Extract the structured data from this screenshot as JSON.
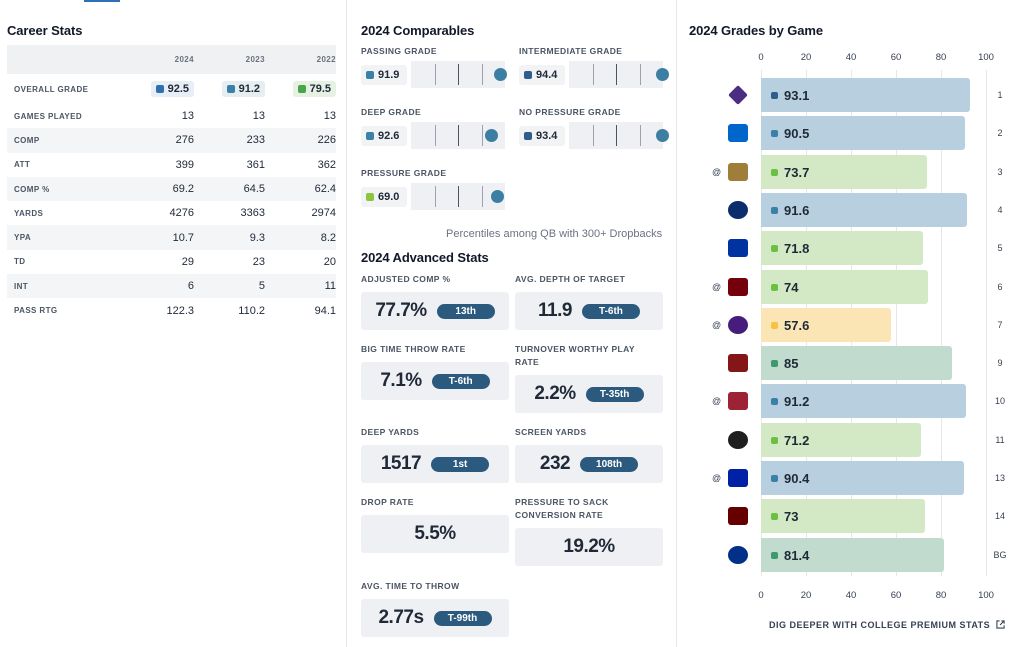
{
  "career": {
    "title": "Career Stats",
    "years": [
      "2024",
      "2023",
      "2022"
    ],
    "grade_row": {
      "label": "OVERALL GRADE",
      "values": [
        {
          "v": "92.5",
          "color": "#2f6fb0",
          "bg": "#e8eef6"
        },
        {
          "v": "91.2",
          "color": "#3b80a7",
          "bg": "#e6eef2"
        },
        {
          "v": "79.5",
          "color": "#4aa54a",
          "bg": "#e6f1e3"
        }
      ]
    },
    "rows": [
      {
        "label": "GAMES PLAYED",
        "values": [
          "13",
          "13",
          "13"
        ]
      },
      {
        "label": "COMP",
        "values": [
          "276",
          "233",
          "226"
        ]
      },
      {
        "label": "ATT",
        "values": [
          "399",
          "361",
          "362"
        ]
      },
      {
        "label": "COMP %",
        "values": [
          "69.2",
          "64.5",
          "62.4"
        ]
      },
      {
        "label": "YARDS",
        "values": [
          "4276",
          "3363",
          "2974"
        ]
      },
      {
        "label": "YPA",
        "values": [
          "10.7",
          "9.3",
          "8.2"
        ]
      },
      {
        "label": "TD",
        "values": [
          "29",
          "23",
          "20"
        ]
      },
      {
        "label": "INT",
        "values": [
          "6",
          "5",
          "11"
        ]
      },
      {
        "label": "PASS RTG",
        "values": [
          "122.3",
          "110.2",
          "94.1"
        ]
      }
    ]
  },
  "comparables": {
    "title": "2024 Comparables",
    "items": [
      {
        "label": "PASSING GRADE",
        "value": "91.9",
        "color": "#3b80a7",
        "percentile": 0.95
      },
      {
        "label": "INTERMEDIATE GRADE",
        "value": "94.4",
        "color": "#2f5d8c",
        "percentile": 0.99
      },
      {
        "label": "DEEP GRADE",
        "value": "92.6",
        "color": "#3b80a7",
        "percentile": 0.85
      },
      {
        "label": "NO PRESSURE GRADE",
        "value": "93.4",
        "color": "#2f5d8c",
        "percentile": 0.99
      },
      {
        "label": "PRESSURE GRADE",
        "value": "69.0",
        "color": "#8cc63f",
        "percentile": 0.92
      }
    ],
    "footnote": "Percentiles among QB with 300+ Dropbacks"
  },
  "advanced": {
    "title": "2024 Advanced Stats",
    "items": [
      {
        "label": "ADJUSTED COMP %",
        "value": "77.7%",
        "rank": "13th"
      },
      {
        "label": "AVG. DEPTH OF TARGET",
        "value": "11.9",
        "rank": "T-6th"
      },
      {
        "label": "BIG TIME THROW RATE",
        "value": "7.1%",
        "rank": "T-6th"
      },
      {
        "label": "TURNOVER WORTHY PLAY RATE",
        "value": "2.2%",
        "rank": "T-35th"
      },
      {
        "label": "DEEP YARDS",
        "value": "1517",
        "rank": "1st"
      },
      {
        "label": "SCREEN YARDS",
        "value": "232",
        "rank": "108th"
      },
      {
        "label": "DROP RATE",
        "value": "5.5%",
        "rank": ""
      },
      {
        "label": "PRESSURE TO SACK CONVERSION RATE",
        "value": "19.2%",
        "rank": ""
      },
      {
        "label": "AVG. TIME TO THROW",
        "value": "2.77s",
        "rank": "T-99th"
      }
    ]
  },
  "grades": {
    "title": "2024 Grades by Game",
    "axis_ticks": [
      "0",
      "20",
      "40",
      "60",
      "80",
      "100"
    ],
    "cta": "DIG DEEPER WITH COLLEGE PREMIUM STATS",
    "colors": {
      "blue_bar": "#b8cfe0",
      "green_bar": "#d3e8c4",
      "teal_bar": "#c1dccf",
      "yellow_bar": "#fbe5b5"
    },
    "games": [
      {
        "week": "1",
        "grade": 93.1,
        "label": "93.1",
        "away": false,
        "bar": "#b8cfe0",
        "dot": "#2f5d8c",
        "logo": "diamond-logo-icon",
        "logo_color": "#4b2e83"
      },
      {
        "week": "2",
        "grade": 90.5,
        "label": "90.5",
        "away": false,
        "bar": "#b8cfe0",
        "dot": "#3b80a7",
        "logo": "mtsu-logo-icon",
        "logo_color": "#0066cc"
      },
      {
        "week": "3",
        "grade": 73.7,
        "label": "73.7",
        "away": true,
        "bar": "#d3e8c4",
        "dot": "#6cbf3f",
        "logo": "wf-logo-icon",
        "logo_color": "#9e7e38"
      },
      {
        "week": "4",
        "grade": 91.6,
        "label": "91.6",
        "away": false,
        "bar": "#b8cfe0",
        "dot": "#3b80a7",
        "logo": "eagle-logo-icon",
        "logo_color": "#0b2d6b"
      },
      {
        "week": "5",
        "grade": 71.8,
        "label": "71.8",
        "away": false,
        "bar": "#d3e8c4",
        "dot": "#6cbf3f",
        "logo": "uk-logo-icon",
        "logo_color": "#0033a0"
      },
      {
        "week": "6",
        "grade": 74,
        "label": "74",
        "away": true,
        "bar": "#d3e8c4",
        "dot": "#6cbf3f",
        "logo": "gamecock-logo-icon",
        "logo_color": "#73000a"
      },
      {
        "week": "7",
        "grade": 57.6,
        "label": "57.6",
        "away": true,
        "bar": "#fbe5b5",
        "dot": "#f5c242",
        "logo": "lsu-logo-icon",
        "logo_color": "#461d7c"
      },
      {
        "week": "9",
        "grade": 85,
        "label": "85",
        "away": false,
        "bar": "#c1dccf",
        "dot": "#3e9a6e",
        "logo": "ou-logo-icon",
        "logo_color": "#841617"
      },
      {
        "week": "10",
        "grade": 91.2,
        "label": "91.2",
        "away": true,
        "bar": "#b8cfe0",
        "dot": "#3b80a7",
        "logo": "razorback-logo-icon",
        "logo_color": "#9d2235"
      },
      {
        "week": "11",
        "grade": 71.2,
        "label": "71.2",
        "away": false,
        "bar": "#d3e8c4",
        "dot": "#6cbf3f",
        "logo": "g-logo-icon",
        "logo_color": "#1f1f1f"
      },
      {
        "week": "13",
        "grade": 90.4,
        "label": "90.4",
        "away": true,
        "bar": "#b8cfe0",
        "dot": "#3b80a7",
        "logo": "gator-logo-icon",
        "logo_color": "#0021a5"
      },
      {
        "week": "14",
        "grade": 73,
        "label": "73",
        "away": false,
        "bar": "#d3e8c4",
        "dot": "#6cbf3f",
        "logo": "msu-logo-icon",
        "logo_color": "#660000"
      },
      {
        "week": "BG",
        "grade": 81.4,
        "label": "81.4",
        "away": false,
        "bar": "#c1dccf",
        "dot": "#3e9a6e",
        "logo": "duke-logo-icon",
        "logo_color": "#003087"
      }
    ]
  },
  "away_marker": "@"
}
